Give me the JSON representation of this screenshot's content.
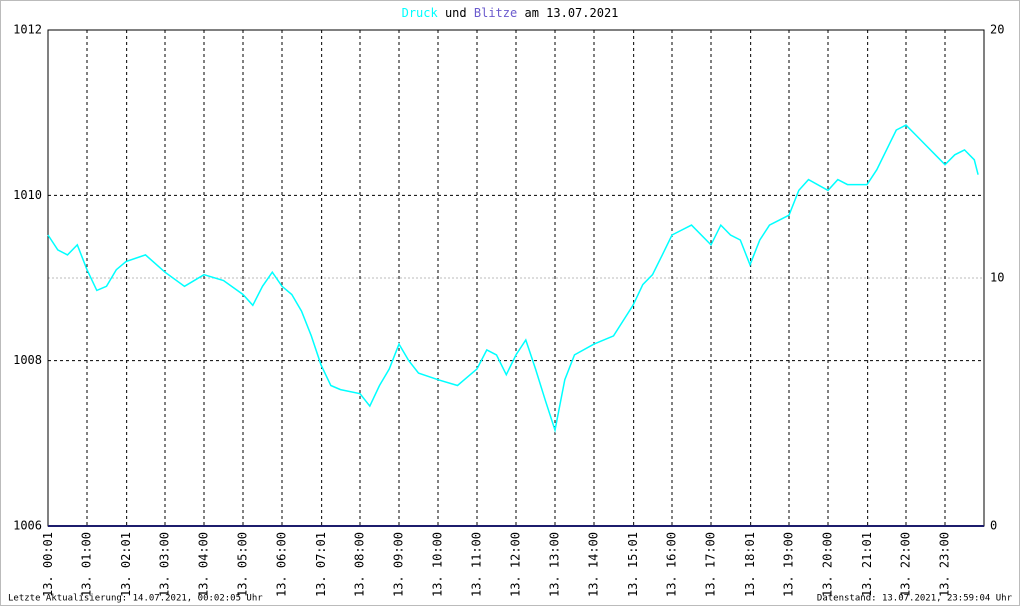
{
  "chart_data": {
    "type": "line",
    "title_connector": "und",
    "title_suffix": "am 13.07.2021",
    "footer_left": "Letzte Aktualisierung: 14.07.2021, 00:02:05 Uhr",
    "footer_right": "Datenstand: 13.07.2021, 23:59:04 Uhr",
    "xlim": [
      0,
      24
    ],
    "xticks": [
      {
        "value": 0.0167,
        "label": "13. 00:01"
      },
      {
        "value": 1,
        "label": "13. 01:00"
      },
      {
        "value": 2.0167,
        "label": "13. 02:01"
      },
      {
        "value": 3,
        "label": "13. 03:00"
      },
      {
        "value": 4,
        "label": "13. 04:00"
      },
      {
        "value": 5,
        "label": "13. 05:00"
      },
      {
        "value": 6,
        "label": "13. 06:00"
      },
      {
        "value": 7.0167,
        "label": "13. 07:01"
      },
      {
        "value": 8,
        "label": "13. 08:00"
      },
      {
        "value": 9,
        "label": "13. 09:00"
      },
      {
        "value": 10,
        "label": "13. 10:00"
      },
      {
        "value": 11,
        "label": "13. 11:00"
      },
      {
        "value": 12,
        "label": "13. 12:00"
      },
      {
        "value": 13,
        "label": "13. 13:00"
      },
      {
        "value": 14,
        "label": "13. 14:00"
      },
      {
        "value": 15.0167,
        "label": "13. 15:01"
      },
      {
        "value": 16,
        "label": "13. 16:00"
      },
      {
        "value": 17,
        "label": "13. 17:00"
      },
      {
        "value": 18.0167,
        "label": "13. 18:01"
      },
      {
        "value": 19,
        "label": "13. 19:00"
      },
      {
        "value": 20,
        "label": "13. 20:00"
      },
      {
        "value": 21.0167,
        "label": "13. 21:01"
      },
      {
        "value": 22,
        "label": "13. 22:00"
      },
      {
        "value": 23,
        "label": "13. 23:00"
      }
    ],
    "ylim": [
      1006,
      1012
    ],
    "yticks": [
      1006,
      1008,
      1010,
      1012
    ],
    "y2lim": [
      0,
      20
    ],
    "y2ticks": [
      0,
      10,
      20
    ],
    "grid": true,
    "series": [
      {
        "name": "Druck",
        "color": "#00ffff",
        "x": [
          0,
          0.25,
          0.5,
          0.75,
          1,
          1.25,
          1.5,
          1.75,
          2,
          2.5,
          3,
          3.5,
          4,
          4.5,
          5,
          5.25,
          5.5,
          5.75,
          6,
          6.25,
          6.5,
          6.75,
          7,
          7.25,
          7.5,
          8,
          8.25,
          8.5,
          8.75,
          9,
          9.25,
          9.5,
          10,
          10.5,
          11,
          11.25,
          11.5,
          11.75,
          12,
          12.25,
          12.5,
          12.75,
          13,
          13.25,
          13.5,
          14,
          14.5,
          15,
          15.25,
          15.5,
          15.75,
          16,
          16.5,
          17,
          17.25,
          17.5,
          17.75,
          18,
          18.25,
          18.5,
          19,
          19.25,
          19.5,
          20,
          20.25,
          20.5,
          21,
          21.25,
          21.5,
          21.75,
          22,
          22.25,
          22.5,
          22.75,
          23,
          23.25,
          23.5,
          23.75,
          23.85
        ],
        "values": [
          1009.52,
          1009.34,
          1009.28,
          1009.4,
          1009.1,
          1008.85,
          1008.9,
          1009.1,
          1009.2,
          1009.28,
          1009.07,
          1008.9,
          1009.04,
          1008.97,
          1008.8,
          1008.67,
          1008.9,
          1009.07,
          1008.9,
          1008.8,
          1008.6,
          1008.3,
          1007.95,
          1007.7,
          1007.65,
          1007.6,
          1007.45,
          1007.7,
          1007.9,
          1008.2,
          1008.0,
          1007.85,
          1007.77,
          1007.7,
          1007.9,
          1008.13,
          1008.07,
          1007.83,
          1008.07,
          1008.25,
          1007.9,
          1007.52,
          1007.16,
          1007.77,
          1008.07,
          1008.2,
          1008.3,
          1008.67,
          1008.92,
          1009.04,
          1009.28,
          1009.52,
          1009.64,
          1009.4,
          1009.64,
          1009.52,
          1009.46,
          1009.16,
          1009.46,
          1009.64,
          1009.76,
          1010.06,
          1010.19,
          1010.06,
          1010.19,
          1010.13,
          1010.13,
          1010.31,
          1010.55,
          1010.79,
          1010.85,
          1010.73,
          1010.61,
          1010.49,
          1010.37,
          1010.49,
          1010.55,
          1010.43,
          1010.25
        ]
      },
      {
        "name": "Blitze",
        "color": "#6a5acd",
        "line_color": "#1c1c6c",
        "axis": "y2",
        "x": [
          0,
          24
        ],
        "values": [
          0,
          0
        ]
      }
    ]
  }
}
